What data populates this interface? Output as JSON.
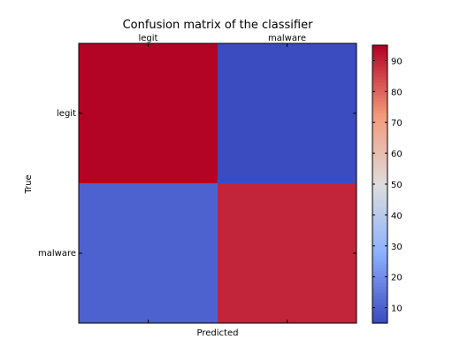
{
  "chart_data": {
    "type": "heatmap",
    "title": "Confusion matrix of the classifier",
    "xlabel": "Predicted",
    "ylabel": "True",
    "x_categories": [
      "legit",
      "malware"
    ],
    "y_categories": [
      "legit",
      "malware"
    ],
    "values": [
      [
        95,
        5
      ],
      [
        10,
        90
      ]
    ],
    "colormap": "coolwarm",
    "colorbar": {
      "ticks": [
        10,
        20,
        30,
        40,
        50,
        60,
        70,
        80,
        90
      ],
      "range": [
        5,
        95
      ]
    },
    "colors": {
      "low": "#3b4cc0",
      "mid": "#dddddd",
      "high": "#b40426"
    }
  }
}
